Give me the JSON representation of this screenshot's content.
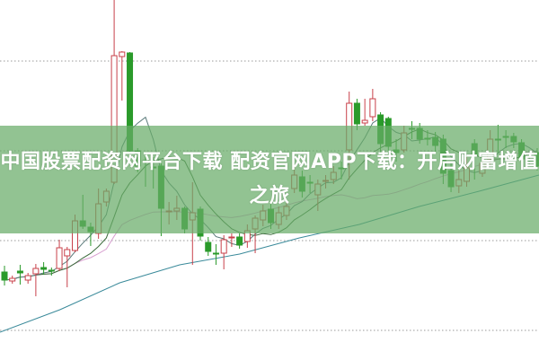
{
  "title": "中国股票配资网平台下载 配资官网APP下载：开启财富增值之旅",
  "chart_data": {
    "type": "candlestick",
    "title": "",
    "xlabel": "",
    "ylabel": "",
    "grid": "horizontal dotted",
    "ylim": [
      0,
      40
    ],
    "colors": {
      "up": "#c8404a",
      "down": "#2a9a2a",
      "ma5": "#5a7a7a",
      "ma10": "#3a6a3a",
      "ma20": "#d8a0d0",
      "ma_long": "#3a8a9a",
      "banner": "#68ac68",
      "grid": "#999999"
    },
    "candles": [
      [
        9.7,
        8.8,
        10.4,
        8.2
      ],
      [
        8.7,
        9.0,
        9.3,
        8.4
      ],
      [
        9.8,
        9.6,
        10.5,
        8.3
      ],
      [
        8.8,
        9.3,
        9.6,
        8.4
      ],
      [
        9.5,
        10.1,
        10.6,
        7.0
      ],
      [
        10.2,
        10.0,
        10.8,
        9.4
      ],
      [
        9.9,
        9.8,
        10.2,
        9.3
      ],
      [
        10.1,
        12.4,
        13.3,
        9.8
      ],
      [
        11.5,
        12.2,
        12.5,
        8.0
      ],
      [
        12.1,
        15.4,
        16.1,
        11.9
      ],
      [
        15.4,
        14.8,
        18.3,
        14.5
      ],
      [
        14.7,
        14.2,
        15.2,
        12.6
      ],
      [
        14.0,
        17.3,
        19.0,
        13.4
      ],
      [
        17.5,
        18.7,
        19.0,
        17.0
      ],
      [
        19.7,
        33.8,
        40.0,
        19.5
      ],
      [
        33.7,
        34.2,
        34.3,
        28.8
      ],
      [
        34.1,
        23.2,
        34.2,
        23.0
      ],
      [
        23.2,
        21.5,
        23.5,
        20.8
      ],
      [
        22.1,
        22.0,
        23.0,
        19.2
      ],
      [
        21.4,
        21.3,
        22.5,
        19.0
      ],
      [
        21.5,
        16.8,
        21.8,
        13.7
      ],
      [
        16.5,
        16.5,
        17.5,
        15.0
      ],
      [
        16.5,
        16.8,
        18.2,
        15.5
      ],
      [
        16.8,
        14.5,
        17.0,
        14.0
      ],
      [
        15.5,
        16.3,
        19.7,
        10.5
      ],
      [
        16.7,
        13.7,
        17.0,
        13.2
      ],
      [
        13.0,
        12.0,
        13.6,
        11.5
      ],
      [
        11.8,
        11.7,
        12.8,
        10.5
      ],
      [
        11.8,
        13.3,
        13.8,
        10.0
      ],
      [
        13.5,
        13.6,
        14.0,
        12.5
      ],
      [
        13.6,
        12.7,
        14.0,
        12.3
      ],
      [
        13.1,
        14.3,
        15.0,
        12.4
      ],
      [
        14.5,
        15.7,
        16.0,
        11.8
      ],
      [
        15.5,
        16.5,
        17.2,
        14.8
      ],
      [
        16.7,
        15.2,
        17.3,
        14.5
      ],
      [
        15.0,
        16.3,
        17.0,
        14.5
      ],
      [
        16.0,
        17.0,
        17.5,
        15.5
      ],
      [
        19.0,
        20.5,
        21.5,
        18.5
      ],
      [
        20.3,
        18.7,
        21.0,
        18.0
      ],
      [
        19.7,
        19.6,
        20.5,
        18.5
      ],
      [
        18.3,
        19.5,
        20.0,
        16.5
      ],
      [
        19.8,
        19.9,
        20.5,
        19.0
      ],
      [
        20.0,
        20.8,
        21.5,
        19.5
      ],
      [
        21.3,
        21.2,
        22.0,
        20.0
      ],
      [
        23.3,
        28.5,
        29.8,
        20.0
      ],
      [
        28.5,
        26.2,
        29.0,
        25.5
      ],
      [
        26.3,
        26.6,
        29.0,
        26.0
      ],
      [
        27.0,
        29.0,
        30.1,
        26.5
      ],
      [
        27.2,
        24.0,
        27.5,
        23.0
      ],
      [
        26.8,
        23.7,
        27.0,
        22.5
      ],
      [
        23.3,
        23.0,
        24.5,
        22.0
      ],
      [
        23.3,
        25.2,
        26.0,
        23.0
      ],
      [
        25.7,
        25.6,
        26.5,
        24.5
      ],
      [
        25.7,
        24.5,
        26.3,
        24.0
      ],
      [
        24.6,
        24.5,
        25.5,
        23.8
      ],
      [
        24.7,
        23.8,
        25.3,
        23.0
      ],
      [
        24.5,
        20.7,
        25.0,
        19.5
      ],
      [
        21.0,
        19.2,
        22.0,
        18.6
      ],
      [
        19.3,
        20.0,
        21.0,
        18.5
      ],
      [
        19.8,
        21.3,
        22.5,
        19.2
      ],
      [
        24.0,
        22.7,
        24.5,
        20.0
      ],
      [
        20.7,
        21.8,
        22.5,
        20.3
      ],
      [
        22.3,
        24.5,
        25.5,
        21.5
      ],
      [
        24.5,
        24.4,
        26.1,
        23.0
      ],
      [
        24.8,
        24.7,
        25.5,
        23.5
      ],
      [
        24.8,
        24.2,
        25.2,
        23.5
      ],
      [
        24.1,
        22.3,
        24.5,
        21.5
      ],
      [
        22.2,
        22.1,
        23.0,
        21.5
      ],
      [
        23.0,
        21.5,
        23.5,
        21.0
      ]
    ],
    "candle_fields": [
      "open",
      "close",
      "high",
      "low"
    ],
    "ma_long": [
      3.0,
      5.5,
      8.5,
      10.5,
      11.7,
      13.5,
      15.0,
      17.0,
      18.7,
      20.5
    ]
  }
}
